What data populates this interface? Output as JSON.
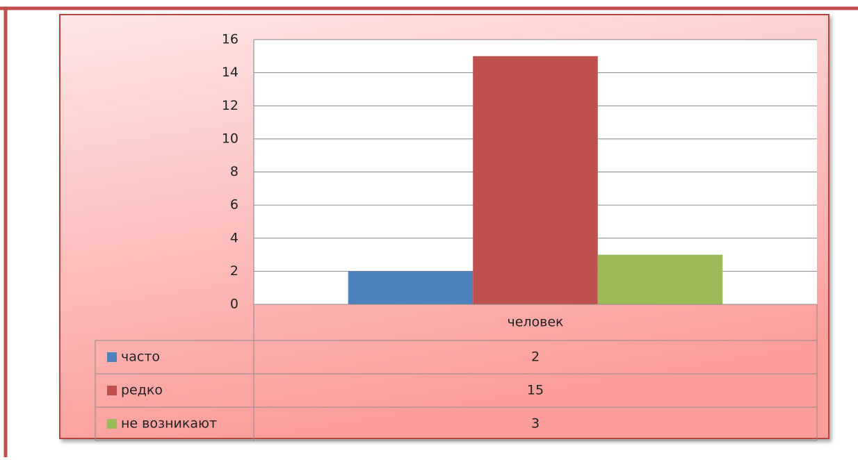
{
  "chart_data": {
    "type": "bar",
    "categories": [
      "человек"
    ],
    "series": [
      {
        "name": "часто",
        "color": "#4f81bd",
        "values": [
          2
        ]
      },
      {
        "name": "редко",
        "color": "#c0504d",
        "values": [
          15
        ]
      },
      {
        "name": "не возникают",
        "color": "#9bbb59",
        "values": [
          3
        ]
      }
    ],
    "ylim": [
      0,
      16
    ],
    "yticks": [
      0,
      2,
      4,
      6,
      8,
      10,
      12,
      14,
      16
    ],
    "grid": true
  }
}
